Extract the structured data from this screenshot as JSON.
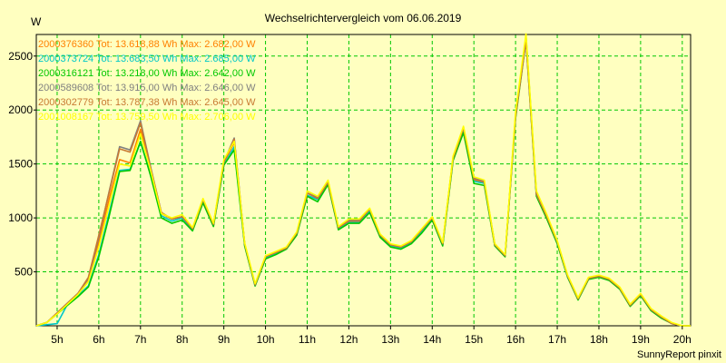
{
  "chart_data": {
    "type": "line",
    "title": "Wechselrichtervergleich vom 06.06.2019",
    "ylabel": "W",
    "xlabel": "",
    "footer": "SunnyReport pinxit",
    "xlim": [
      4.5,
      20.2
    ],
    "ylim": [
      0,
      2700
    ],
    "grid": true,
    "legend_position": "top-left",
    "x_ticks": [
      5,
      6,
      7,
      8,
      9,
      10,
      11,
      12,
      13,
      14,
      15,
      16,
      17,
      18,
      19,
      20
    ],
    "x_tick_labels": [
      "5h",
      "6h",
      "7h",
      "8h",
      "9h",
      "10h",
      "11h",
      "12h",
      "13h",
      "14h",
      "15h",
      "16h",
      "17h",
      "18h",
      "19h",
      "20h"
    ],
    "y_ticks": [
      500,
      1000,
      1500,
      2000,
      2500
    ],
    "y_tick_labels": [
      "500",
      "1000",
      "1500",
      "2000",
      "2500"
    ],
    "x": [
      4.5,
      4.75,
      5.0,
      5.25,
      5.5,
      5.75,
      6.0,
      6.25,
      6.5,
      6.75,
      7.0,
      7.25,
      7.5,
      7.75,
      8.0,
      8.25,
      8.5,
      8.75,
      9.0,
      9.25,
      9.5,
      9.75,
      10.0,
      10.25,
      10.5,
      10.75,
      11.0,
      11.25,
      11.5,
      11.75,
      12.0,
      12.25,
      12.5,
      12.75,
      13.0,
      13.25,
      13.5,
      13.75,
      14.0,
      14.25,
      14.5,
      14.75,
      15.0,
      15.25,
      15.5,
      15.75,
      16.0,
      16.25,
      16.5,
      16.75,
      17.0,
      17.25,
      17.5,
      17.75,
      18.0,
      18.25,
      18.5,
      18.75,
      19.0,
      19.25,
      19.5,
      19.75,
      20.0,
      20.2
    ],
    "series": [
      {
        "name": "2000376360 Tot: 13.618,88 Wh Max: 2.682,00 W",
        "color": "#ff8000",
        "values": [
          0,
          30,
          110,
          200,
          290,
          430,
          780,
          1180,
          1540,
          1510,
          1820,
          1440,
          1040,
          990,
          1010,
          900,
          1170,
          940,
          1510,
          1700,
          760,
          380,
          640,
          680,
          720,
          860,
          1230,
          1190,
          1330,
          910,
          970,
          970,
          1080,
          840,
          750,
          730,
          780,
          880,
          990,
          760,
          1550,
          1820,
          1350,
          1320,
          750,
          650,
          1950,
          2682,
          1230,
          1020,
          780,
          460,
          250,
          440,
          460,
          430,
          350,
          190,
          290,
          150,
          80,
          20,
          0,
          0
        ]
      },
      {
        "name": "2000373724 Tot: 13.683,50 Wh Max: 2.685,00 W",
        "color": "#00c8c8",
        "values": [
          0,
          10,
          20,
          200,
          280,
          370,
          660,
          1050,
          1440,
          1450,
          1700,
          1400,
          1020,
          970,
          1000,
          890,
          1150,
          930,
          1490,
          1660,
          750,
          370,
          630,
          670,
          720,
          850,
          1210,
          1170,
          1320,
          900,
          960,
          960,
          1060,
          830,
          740,
          720,
          770,
          870,
          990,
          750,
          1540,
          1800,
          1340,
          1320,
          750,
          650,
          1950,
          2685,
          1230,
          1010,
          770,
          450,
          250,
          440,
          460,
          430,
          350,
          190,
          290,
          150,
          80,
          20,
          0,
          0
        ]
      },
      {
        "name": "2000316121 Tot: 13.218,00 Wh Max: 2.642,00 W",
        "color": "#00c800",
        "values": [
          0,
          30,
          110,
          190,
          270,
          360,
          640,
          1020,
          1430,
          1440,
          1710,
          1380,
          1000,
          950,
          980,
          880,
          1140,
          920,
          1490,
          1630,
          740,
          370,
          620,
          660,
          710,
          840,
          1200,
          1150,
          1310,
          890,
          950,
          950,
          1050,
          820,
          730,
          710,
          760,
          860,
          980,
          740,
          1530,
          1790,
          1320,
          1300,
          740,
          640,
          1920,
          2642,
          1200,
          990,
          760,
          450,
          240,
          430,
          450,
          420,
          340,
          180,
          280,
          140,
          70,
          20,
          0,
          0
        ]
      },
      {
        "name": "2000589608 Tot: 13.915,00 Wh Max: 2.646,00 W",
        "color": "#808080",
        "values": [
          0,
          30,
          120,
          210,
          300,
          440,
          820,
          1250,
          1660,
          1630,
          1900,
          1460,
          1050,
          990,
          1010,
          900,
          1170,
          940,
          1520,
          1740,
          760,
          380,
          640,
          680,
          720,
          860,
          1230,
          1190,
          1340,
          910,
          980,
          980,
          1080,
          840,
          750,
          730,
          780,
          890,
          1000,
          760,
          1560,
          1840,
          1370,
          1340,
          760,
          650,
          1940,
          2646,
          1220,
          1010,
          780,
          460,
          250,
          440,
          460,
          430,
          350,
          190,
          290,
          150,
          80,
          20,
          0,
          0
        ]
      },
      {
        "name": "2000302779 Tot: 13.787,38 Wh Max: 2.645,00 W",
        "color": "#c87832",
        "values": [
          0,
          30,
          120,
          210,
          300,
          450,
          840,
          1240,
          1640,
          1610,
          1880,
          1450,
          1050,
          990,
          1010,
          900,
          1170,
          940,
          1520,
          1730,
          760,
          380,
          640,
          680,
          720,
          860,
          1230,
          1180,
          1330,
          910,
          970,
          970,
          1080,
          840,
          750,
          730,
          780,
          890,
          1000,
          760,
          1550,
          1830,
          1360,
          1330,
          750,
          650,
          1940,
          2645,
          1220,
          1010,
          780,
          460,
          250,
          440,
          460,
          430,
          350,
          190,
          290,
          150,
          80,
          20,
          0,
          0
        ]
      },
      {
        "name": "2001008167 Tot: 13.759,50 Wh Max: 2.706,00 W",
        "color": "#ffff00",
        "values": [
          0,
          30,
          110,
          200,
          290,
          410,
          730,
          1120,
          1500,
          1480,
          1780,
          1430,
          1040,
          1000,
          1030,
          910,
          1180,
          950,
          1540,
          1710,
          770,
          390,
          650,
          690,
          730,
          870,
          1250,
          1200,
          1350,
          920,
          990,
          990,
          1090,
          850,
          760,
          740,
          790,
          900,
          1010,
          770,
          1570,
          1850,
          1380,
          1350,
          760,
          660,
          1980,
          2706,
          1250,
          1030,
          790,
          470,
          260,
          450,
          470,
          440,
          360,
          200,
          300,
          160,
          90,
          30,
          0,
          0
        ]
      }
    ]
  }
}
